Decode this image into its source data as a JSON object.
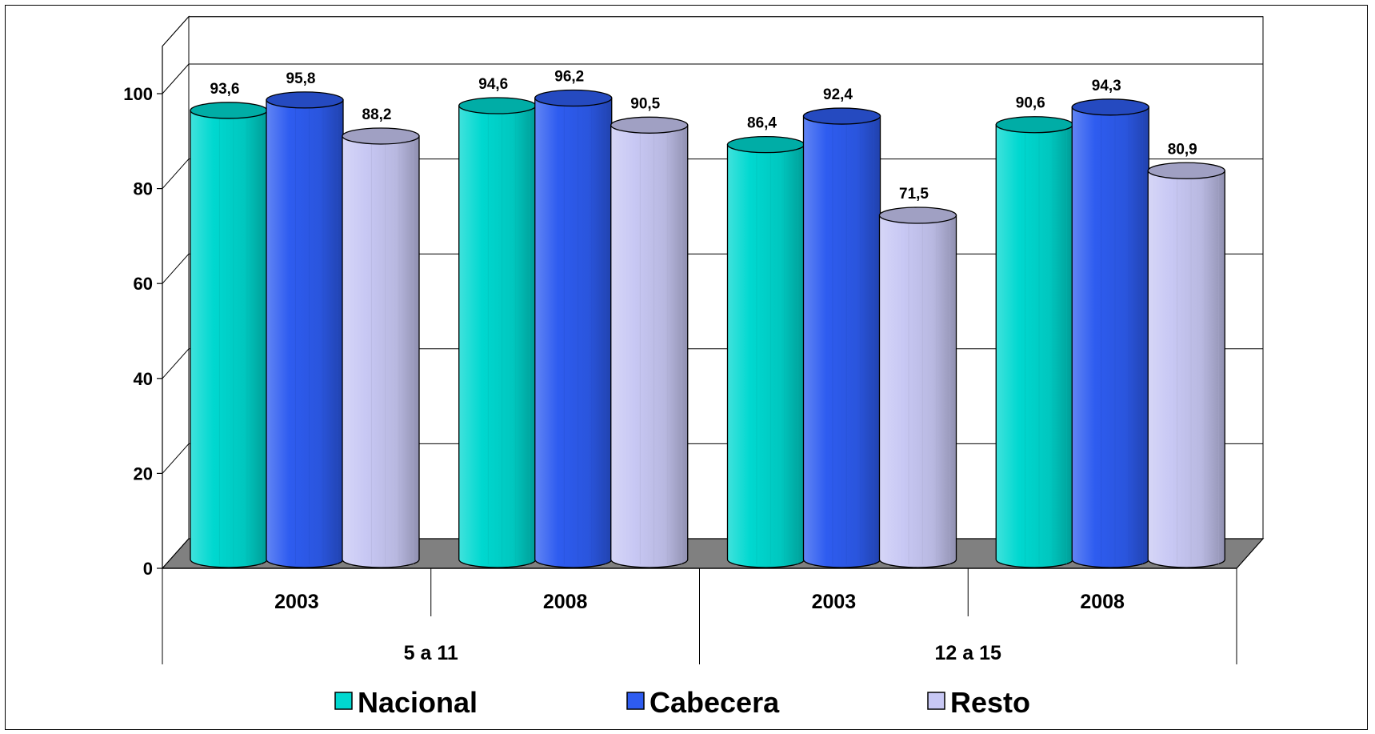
{
  "chart_data": {
    "type": "bar",
    "style": "3d-cylinder",
    "groups": [
      {
        "label": "5 a 11",
        "categories": [
          "2003",
          "2008"
        ]
      },
      {
        "label": "12 a 15",
        "categories": [
          "2003",
          "2008"
        ]
      }
    ],
    "categories": [
      "2003",
      "2008",
      "2003",
      "2008"
    ],
    "series": [
      {
        "name": "Nacional",
        "color": "#00D8D0",
        "values": [
          93.6,
          94.6,
          86.4,
          90.6
        ],
        "labels": [
          "93,6",
          "94,6",
          "86,4",
          "90,6"
        ]
      },
      {
        "name": "Cabecera",
        "color": "#2E5CF0",
        "values": [
          95.8,
          96.2,
          92.4,
          94.3
        ],
        "labels": [
          "95,8",
          "96,2",
          "92,4",
          "94,3"
        ]
      },
      {
        "name": "Resto",
        "color": "#C8C8F4",
        "values": [
          88.2,
          90.5,
          71.5,
          80.9
        ],
        "labels": [
          "88,2",
          "90,5",
          "71,5",
          "80,9"
        ]
      }
    ],
    "ylim": [
      0,
      100
    ],
    "yticks": [
      0,
      20,
      40,
      60,
      80,
      100
    ],
    "grid": true,
    "floor_color": "#808080",
    "legend": "bottom"
  }
}
